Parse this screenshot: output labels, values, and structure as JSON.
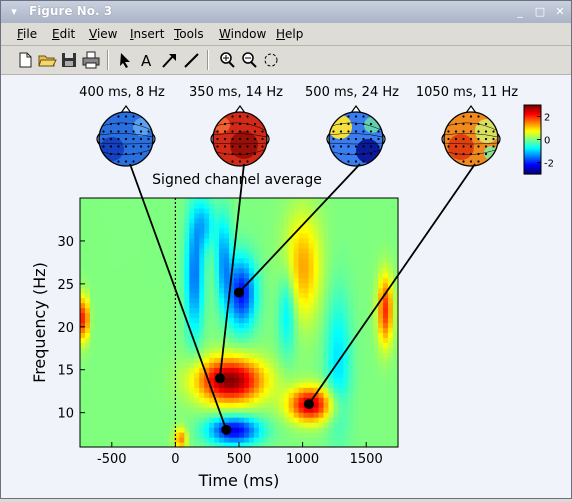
{
  "window": {
    "title": "Figure No. 3",
    "controls": {
      "minimize": "_",
      "maximize": "□",
      "close": "✕"
    }
  },
  "menubar": {
    "items": [
      {
        "label": "File",
        "accel": "F",
        "rest": "ile"
      },
      {
        "label": "Edit",
        "accel": "E",
        "rest": "dit"
      },
      {
        "label": "View",
        "accel": "V",
        "rest": "iew"
      },
      {
        "label": "Insert",
        "accel": "I",
        "rest": "nsert"
      },
      {
        "label": "Tools",
        "accel": "T",
        "rest": "ools"
      },
      {
        "label": "Window",
        "accel": "W",
        "rest": "indow"
      },
      {
        "label": "Help",
        "accel": "H",
        "rest": "elp"
      }
    ]
  },
  "toolbar": {
    "icons": [
      "new-file-icon",
      "open-folder-icon",
      "save-icon",
      "print-icon",
      "select-arrow-icon",
      "text-insert-icon",
      "arrow-insert-icon",
      "line-insert-icon",
      "zoom-in-icon",
      "zoom-out-icon",
      "rotate-icon"
    ],
    "text_tool_glyph": "A"
  },
  "chart_data": {
    "type": "heatmap",
    "title": "Signed channel average",
    "xlabel": "Time (ms)",
    "ylabel": "Frequency (Hz)",
    "xlim": [
      -750,
      1750
    ],
    "ylim": [
      6,
      35
    ],
    "xticks": [
      -500,
      0,
      500,
      1000,
      1500
    ],
    "yticks": [
      10,
      15,
      20,
      25,
      30
    ],
    "event_line_x": 0,
    "topoplots": [
      {
        "label": "400 ms, 8 Hz",
        "time": 400,
        "freq": 8,
        "base": "#2a6fe0",
        "kind": "blue"
      },
      {
        "label": "350 ms, 14 Hz",
        "time": 350,
        "freq": 14,
        "base": "#d22a18",
        "kind": "red"
      },
      {
        "label": "500 ms, 24 Hz",
        "time": 500,
        "freq": 24,
        "base": "#3a7df0",
        "kind": "mixed"
      },
      {
        "label": "1050 ms, 11 Hz",
        "time": 1050,
        "freq": 11,
        "base": "#f08a20",
        "kind": "orange"
      }
    ],
    "colorbar": {
      "ticks": [
        2,
        0,
        -2
      ],
      "range": [
        -3,
        3
      ]
    },
    "blobs": [
      {
        "t": 430,
        "f": 13.8,
        "rt": 260,
        "rf": 2.6,
        "v": 3.0
      },
      {
        "t": 1060,
        "f": 11.0,
        "rt": 170,
        "rf": 2.0,
        "v": 2.6
      },
      {
        "t": 150,
        "f": 26,
        "rt": 70,
        "rf": 7,
        "v": -1.6
      },
      {
        "t": 520,
        "f": 24,
        "rt": 110,
        "rf": 4,
        "v": -2.2
      },
      {
        "t": 460,
        "f": 8,
        "rt": 200,
        "rf": 1.6,
        "v": -2.4
      },
      {
        "t": 880,
        "f": 22,
        "rt": 70,
        "rf": 5,
        "v": -1.0
      },
      {
        "t": 380,
        "f": 28,
        "rt": 60,
        "rf": 5,
        "v": -1.3
      },
      {
        "t": 1000,
        "f": 27,
        "rt": 140,
        "rf": 6,
        "v": 1.3
      },
      {
        "t": 1280,
        "f": 16,
        "rt": 100,
        "rf": 8,
        "v": -0.9
      },
      {
        "t": 1650,
        "f": 22,
        "rt": 60,
        "rf": 4,
        "v": 2.0
      },
      {
        "t": -720,
        "f": 21,
        "rt": 40,
        "rf": 2.5,
        "v": 2.2
      },
      {
        "t": 230,
        "f": 32,
        "rt": 80,
        "rf": 3,
        "v": -1.0
      },
      {
        "t": 40,
        "f": 7,
        "rt": 50,
        "rf": 1.3,
        "v": 1.5
      }
    ]
  }
}
